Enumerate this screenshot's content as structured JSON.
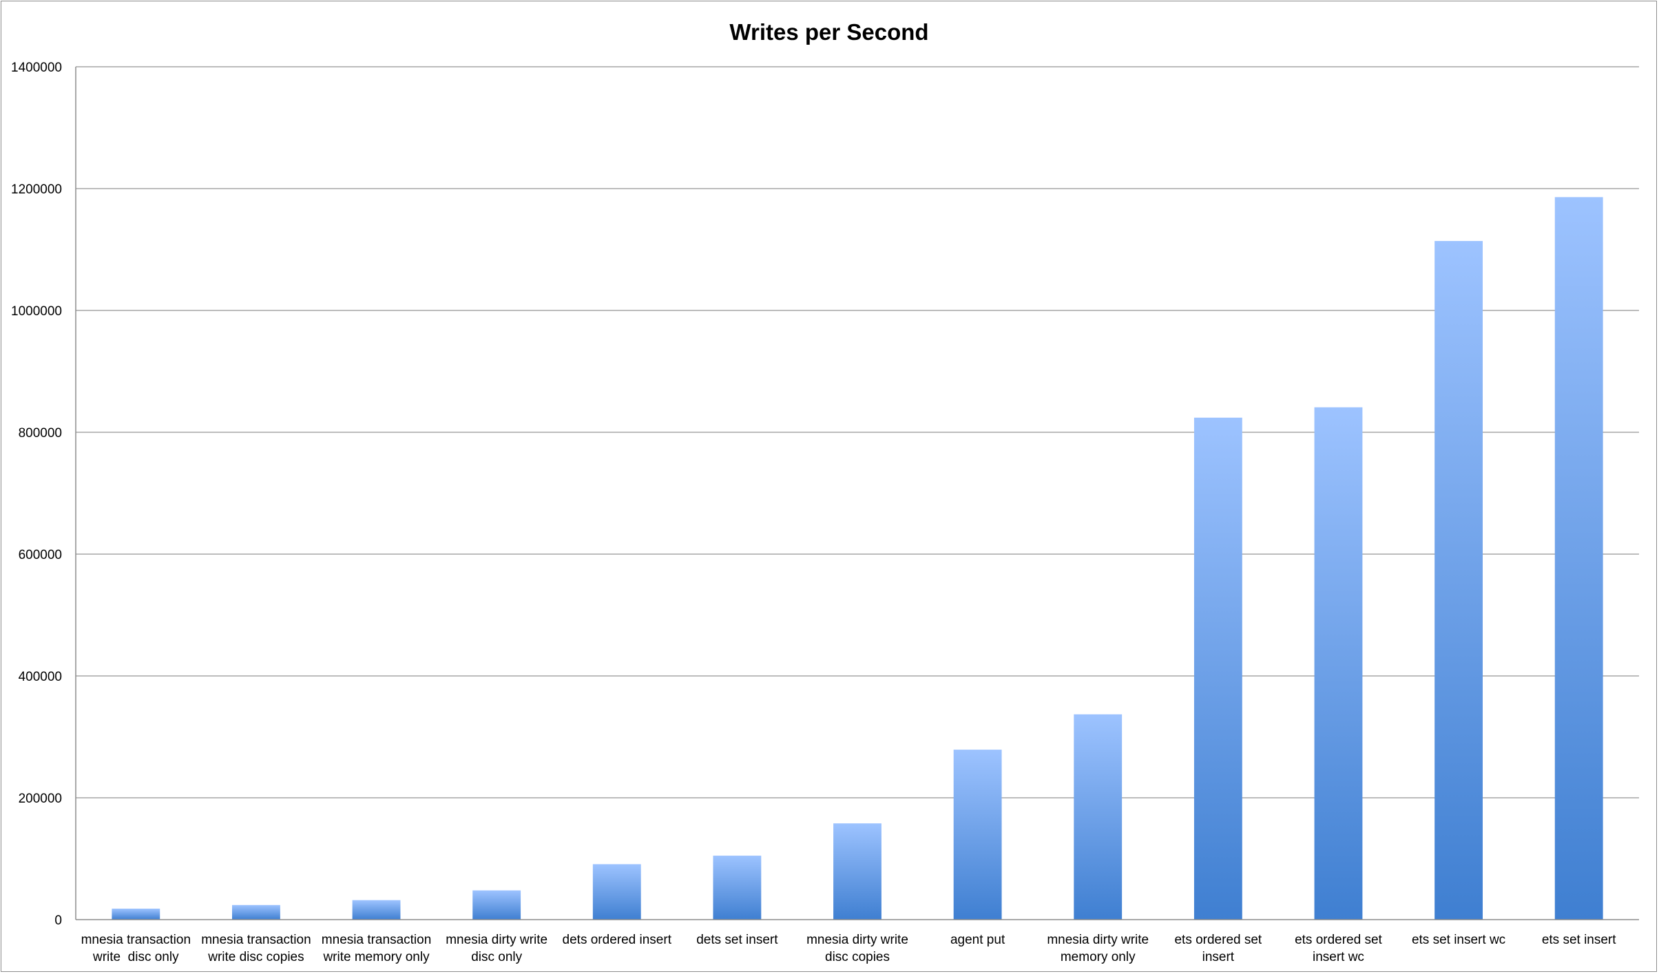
{
  "chart_data": {
    "type": "bar",
    "title": "Writes per Second",
    "xlabel": "",
    "ylabel": "",
    "ylim": [
      0,
      1400000
    ],
    "yticks": [
      0,
      200000,
      400000,
      600000,
      800000,
      1000000,
      1200000,
      1400000
    ],
    "grid": true,
    "legend": "none",
    "categories": [
      [
        "mnesia transaction",
        "write  disc only"
      ],
      [
        "mnesia transaction",
        "write disc copies"
      ],
      [
        "mnesia transaction",
        "write memory only"
      ],
      [
        "mnesia dirty write",
        "disc only"
      ],
      [
        "dets ordered insert"
      ],
      [
        "dets set insert"
      ],
      [
        "mnesia dirty write",
        "disc copies"
      ],
      [
        "agent put"
      ],
      [
        "mnesia dirty write",
        "memory only"
      ],
      [
        "ets ordered set",
        "insert"
      ],
      [
        "ets ordered set",
        "insert wc"
      ],
      [
        "ets set insert wc"
      ],
      [
        "ets set insert"
      ]
    ],
    "values": [
      18000,
      24000,
      32000,
      48000,
      91000,
      105000,
      158000,
      279000,
      337000,
      824000,
      841000,
      1114000,
      1186000
    ],
    "colors": {
      "bar_top": "#9dc3ff",
      "bar_bottom": "#3f7fd1",
      "grid": "#a6a6a6",
      "axis": "#8c8c8c"
    }
  }
}
